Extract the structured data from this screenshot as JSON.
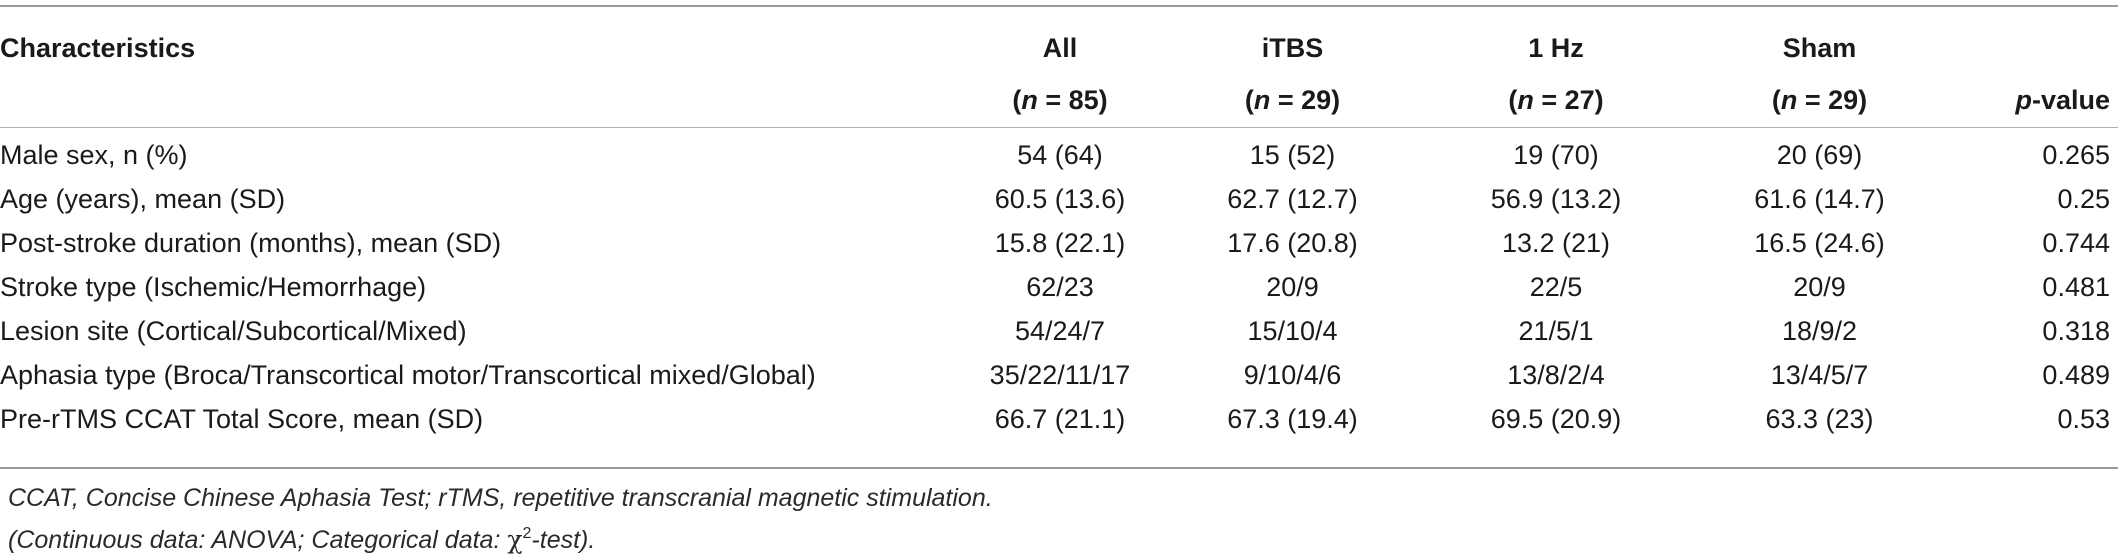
{
  "table": {
    "header": {
      "characteristics": "Characteristics",
      "groups": [
        {
          "name": "All",
          "n_prefix": "(",
          "n_var": "n",
          "n_value": " = 85)"
        },
        {
          "name": "iTBS",
          "n_prefix": "(",
          "n_var": "n",
          "n_value": " = 29)"
        },
        {
          "name": "1 Hz",
          "n_prefix": "(",
          "n_var": "n",
          "n_value": " = 27)"
        },
        {
          "name": "Sham",
          "n_prefix": "(",
          "n_var": "n",
          "n_value": " = 29)"
        }
      ],
      "pvalue_var": "p",
      "pvalue_suffix": "-value"
    },
    "rows": [
      {
        "label": "Male sex, n (%)",
        "all": "54 (64)",
        "itbs": "15 (52)",
        "hz1": "19 (70)",
        "sham": "20 (69)",
        "p": "0.265"
      },
      {
        "label": "Age (years), mean (SD)",
        "all": "60.5 (13.6)",
        "itbs": "62.7 (12.7)",
        "hz1": "56.9 (13.2)",
        "sham": "61.6 (14.7)",
        "p": "0.25"
      },
      {
        "label": "Post-stroke duration (months), mean (SD)",
        "all": "15.8 (22.1)",
        "itbs": "17.6 (20.8)",
        "hz1": "13.2 (21)",
        "sham": "16.5 (24.6)",
        "p": "0.744"
      },
      {
        "label": "Stroke type (Ischemic/Hemorrhage)",
        "all": "62/23",
        "itbs": "20/9",
        "hz1": "22/5",
        "sham": "20/9",
        "p": "0.481"
      },
      {
        "label": "Lesion site (Cortical/Subcortical/Mixed)",
        "all": "54/24/7",
        "itbs": "15/10/4",
        "hz1": "21/5/1",
        "sham": "18/9/2",
        "p": "0.318"
      },
      {
        "label": "Aphasia type (Broca/Transcortical motor/Transcortical mixed/Global)",
        "all": "35/22/11/17",
        "itbs": "9/10/4/6",
        "hz1": "13/8/2/4",
        "sham": "13/4/5/7",
        "p": "0.489"
      },
      {
        "label": "Pre-rTMS CCAT Total Score, mean (SD)",
        "all": "66.7 (21.1)",
        "itbs": "67.3 (19.4)",
        "hz1": "69.5 (20.9)",
        "sham": "63.3 (23)",
        "p": "0.53"
      }
    ]
  },
  "footnotes": {
    "line1": "CCAT, Concise Chinese Aphasia Test; rTMS, repetitive transcranial magnetic stimulation.",
    "line2_prefix": "(Continuous data: ANOVA; Categorical data: ",
    "line2_chi": "χ",
    "line2_sup": "2",
    "line2_suffix": "-test)."
  }
}
